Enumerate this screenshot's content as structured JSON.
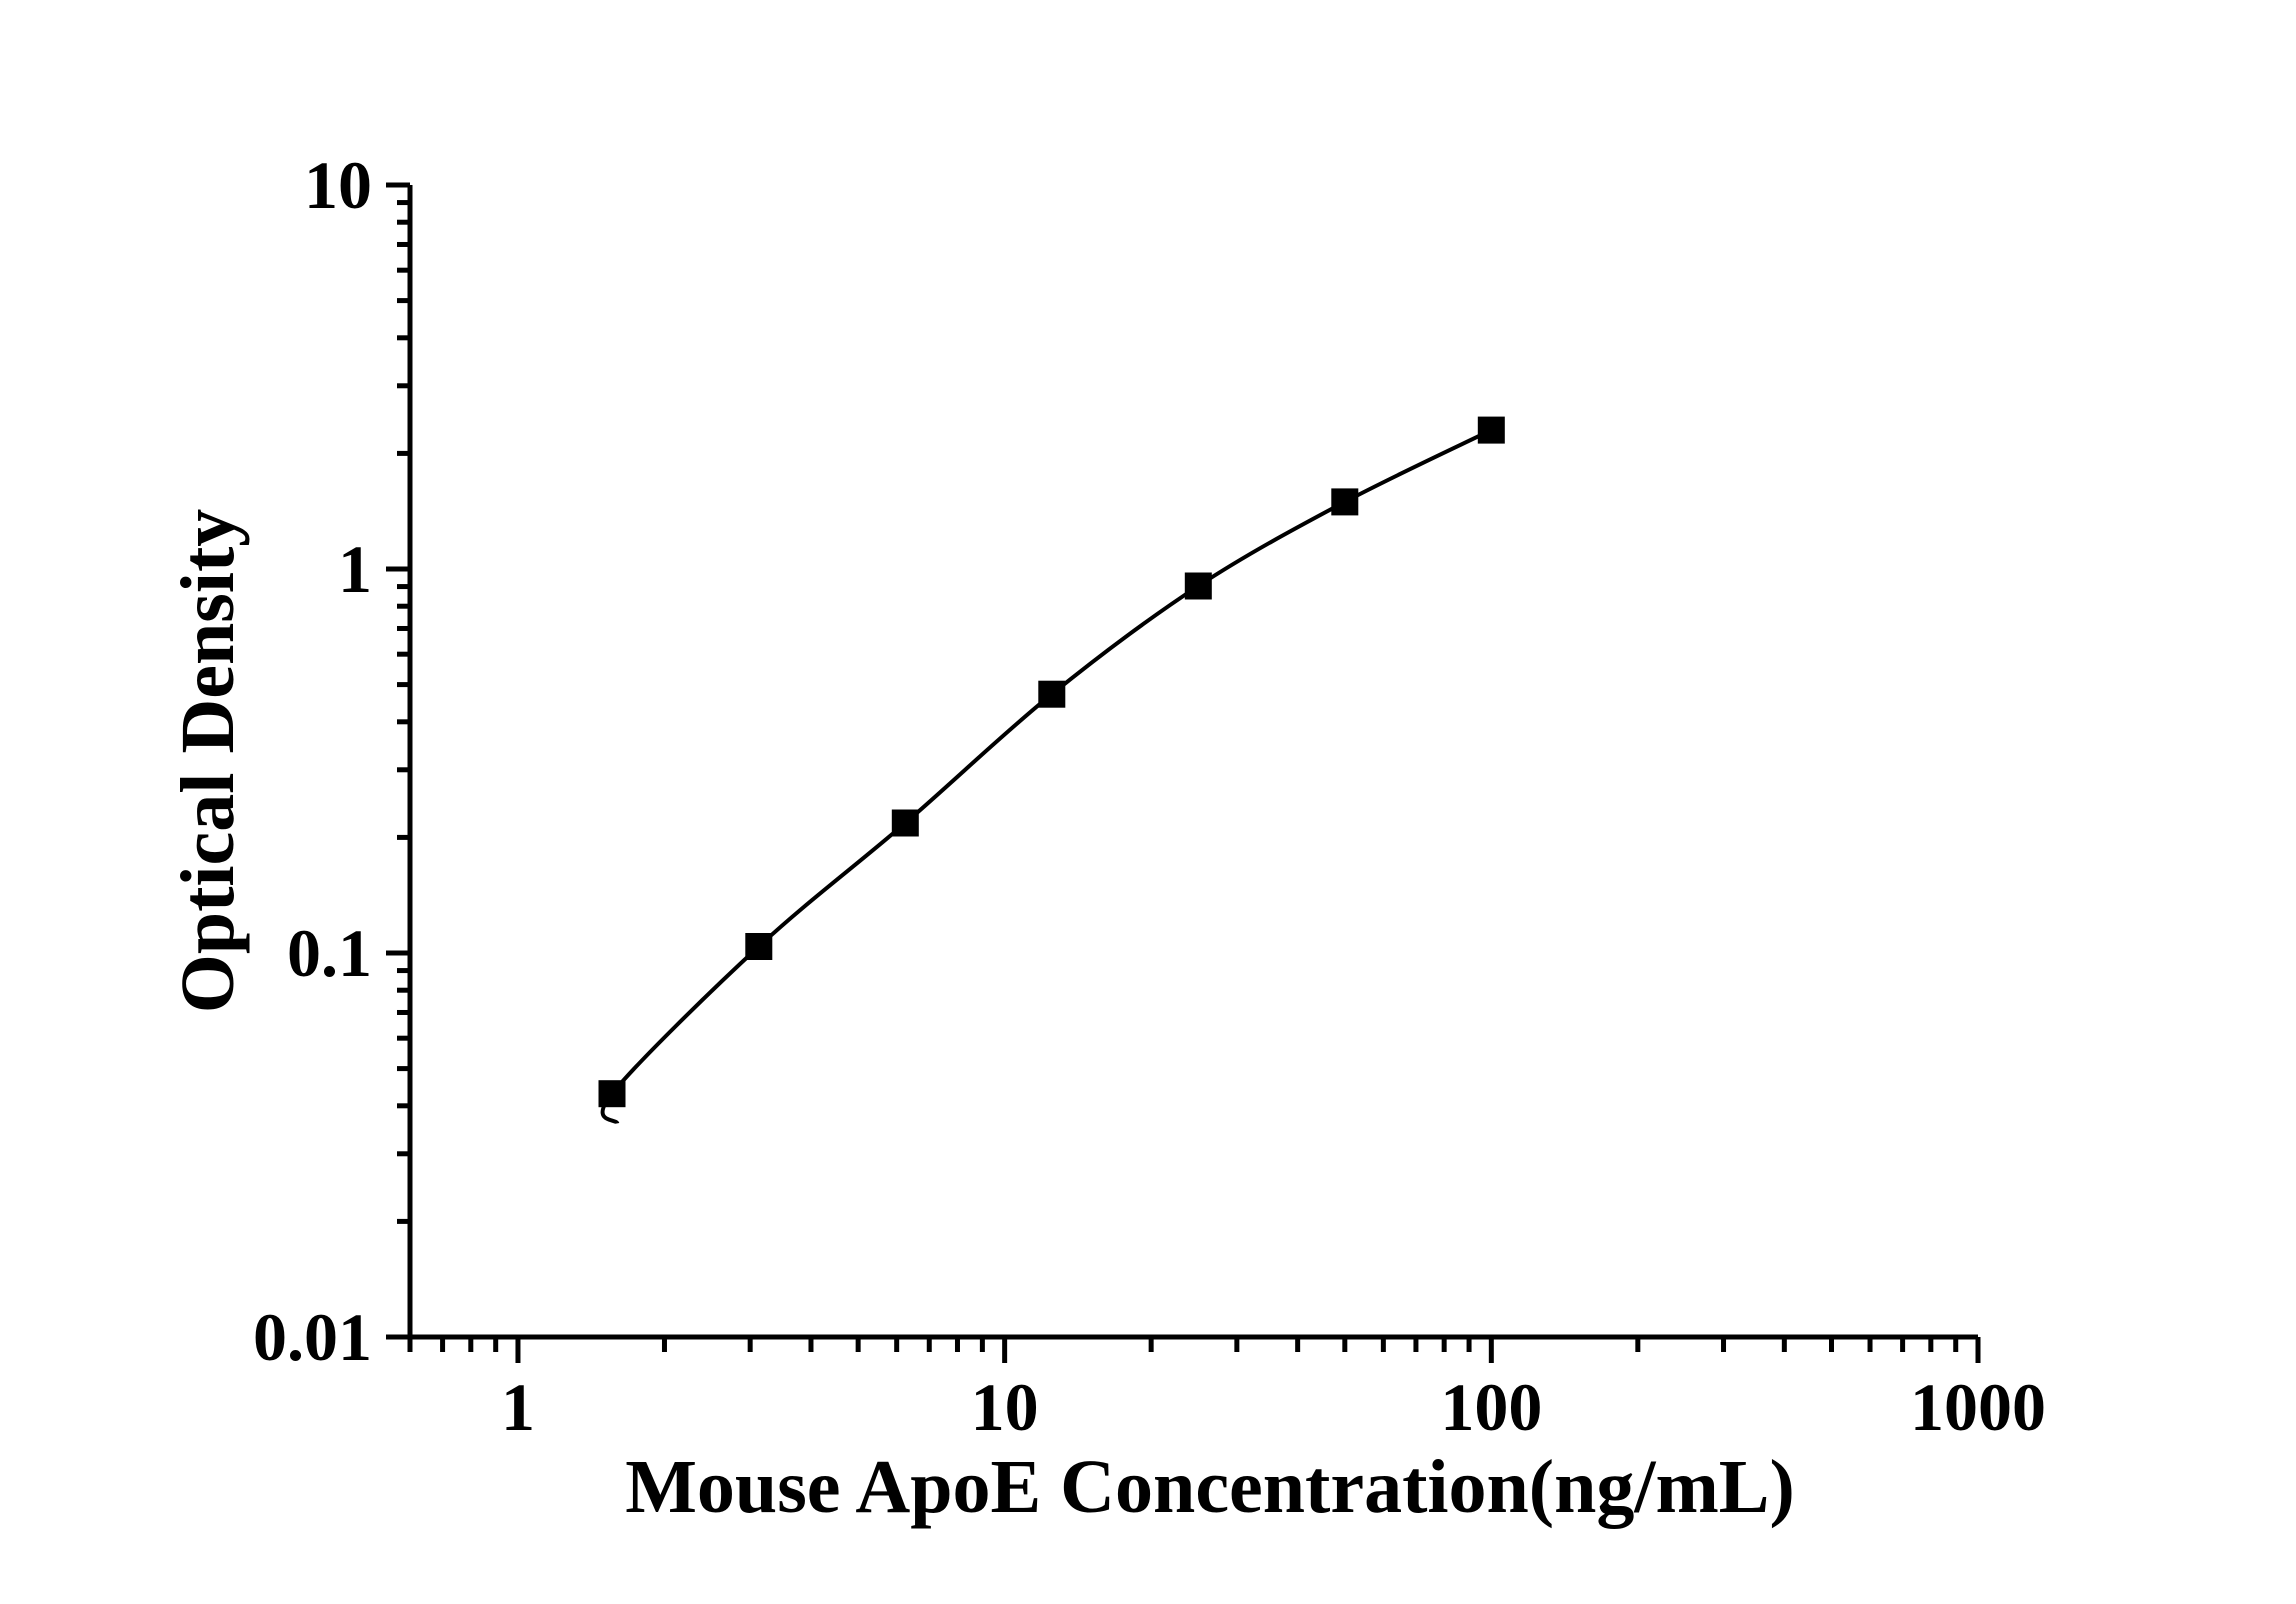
{
  "figure": {
    "background_color": "#ffffff"
  },
  "chart_data": {
    "type": "scatter",
    "subtype": "standard-curve-with-fitted-line",
    "title": "",
    "xlabel": "Mouse ApoE Concentration(ng/mL)",
    "ylabel": "Optical Density",
    "x_scale": "log",
    "y_scale": "log",
    "xlim": [
      0.6,
      1000
    ],
    "ylim": [
      0.01,
      10
    ],
    "x_major_ticks": [
      1,
      10,
      100,
      1000
    ],
    "x_tick_labels": [
      "1",
      "10",
      "100",
      "1000"
    ],
    "y_major_ticks": [
      0.01,
      0.1,
      1,
      10
    ],
    "y_tick_labels": [
      "0.01",
      "0.1",
      "1",
      "10"
    ],
    "grid": false,
    "legend": false,
    "marker": "filled-square",
    "points": [
      {
        "x": 1.56,
        "y": 0.043
      },
      {
        "x": 3.125,
        "y": 0.104
      },
      {
        "x": 6.25,
        "y": 0.218
      },
      {
        "x": 12.5,
        "y": 0.472
      },
      {
        "x": 25,
        "y": 0.903
      },
      {
        "x": 50,
        "y": 1.495
      },
      {
        "x": 100,
        "y": 2.3
      }
    ],
    "fit_line_extension": {
      "x": 1.6,
      "y": 0.036
    },
    "colors": {
      "axis": "#000000",
      "marker": "#000000",
      "line": "#000000",
      "background": "#ffffff"
    }
  }
}
